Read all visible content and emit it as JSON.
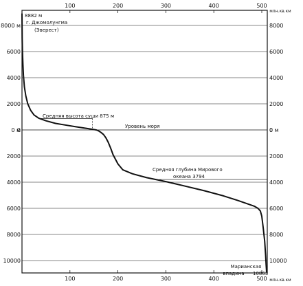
{
  "chart_data": {
    "type": "line",
    "title": "",
    "x_unit_label": "млн.кв.км",
    "y_unit_label": "м",
    "xlim": [
      0,
      510
    ],
    "ylim": [
      -11000,
      9000
    ],
    "x_ticks": [
      100,
      200,
      300,
      400,
      500
    ],
    "x_tick_labels": [
      "100",
      "200",
      "300",
      "400",
      "500"
    ],
    "y_ticks": [
      8000,
      6000,
      4000,
      2000,
      0,
      -2000,
      -4000,
      -6000,
      -8000,
      -10000
    ],
    "y_tick_labels": [
      "8000",
      "6000",
      "4000",
      "2000",
      "0",
      "2000",
      "4000",
      "6000",
      "8000",
      "10000"
    ],
    "zero_label": "0",
    "y_tick_unit_suffix": "м",
    "x_tick_unit_suffix": "млн.кв.км",
    "grid": "horizontal",
    "series": [
      {
        "x": [
          0,
          0.5,
          1,
          2,
          3,
          5,
          8,
          12,
          18,
          25,
          35,
          50,
          70,
          90,
          110,
          130,
          145,
          155,
          160,
          165,
          170,
          175,
          180,
          185,
          190,
          200,
          210,
          230,
          260,
          300,
          340,
          380,
          420,
          450,
          470,
          485,
          492,
          497,
          500,
          503,
          506,
          508,
          509,
          510
        ],
        "y": [
          8882,
          7000,
          6000,
          5000,
          4200,
          3300,
          2600,
          2000,
          1500,
          1150,
          900,
          700,
          500,
          380,
          260,
          150,
          60,
          0,
          -80,
          -200,
          -350,
          -600,
          -950,
          -1400,
          -1900,
          -2600,
          -3050,
          -3350,
          -3650,
          -3950,
          -4300,
          -4650,
          -5050,
          -5400,
          -5650,
          -5850,
          -6000,
          -6200,
          -6600,
          -7500,
          -8500,
          -9600,
          -10300,
          -10863
        ]
      }
    ],
    "annotations": {
      "peak_value": "8882 м",
      "peak_name_1": "г. Джомолунгма",
      "peak_name_2": "(Эверест)",
      "land_mean_label": "Средняя высота суши 875 м",
      "land_mean_y": 875,
      "land_mean_x": 147,
      "sea_level_label": "Уровень моря",
      "ocean_mean_label_1": "Средняя глубина Мирового",
      "ocean_mean_label_2": "океана 3794",
      "ocean_mean_y": -3794,
      "trench_name_1": "Марианская",
      "trench_name_2": "впадина",
      "trench_depth": "10863"
    }
  }
}
